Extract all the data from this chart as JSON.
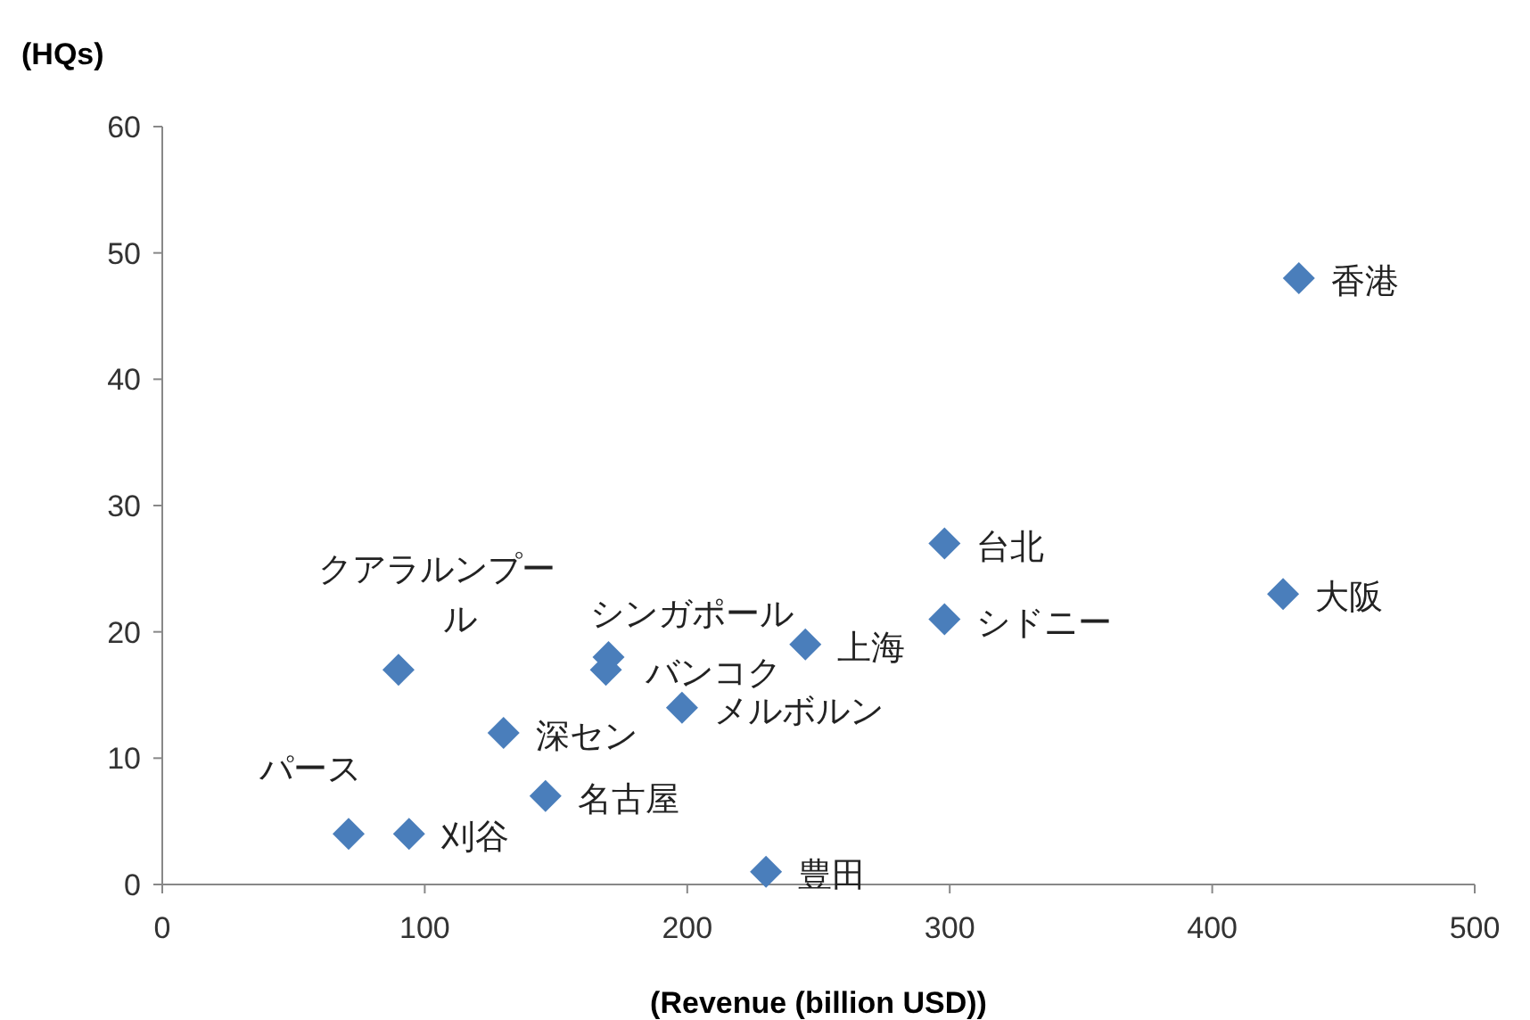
{
  "chart_data": {
    "type": "scatter",
    "xlabel": "(Revenue (billion USD))",
    "ylabel": "(HQs)",
    "xlim": [
      0,
      500
    ],
    "ylim": [
      0,
      60
    ],
    "xticks": [
      0,
      100,
      200,
      300,
      400,
      500
    ],
    "yticks": [
      0,
      10,
      20,
      30,
      40,
      50,
      60
    ],
    "grid": false,
    "marker": "diamond",
    "series": [
      {
        "color": "#4a7ebb",
        "x": [
          433,
          298,
          427,
          298,
          245,
          170,
          169,
          90,
          198,
          130,
          146,
          71,
          94,
          230
        ],
        "values": [
          48,
          27,
          23,
          21,
          19,
          18,
          17,
          17,
          14,
          12,
          7,
          4,
          4,
          1
        ]
      }
    ],
    "annotations": [
      {
        "text": "香港",
        "x": 433,
        "y": 48
      },
      {
        "text": "台北",
        "x": 298,
        "y": 27
      },
      {
        "text": "大阪",
        "x": 427,
        "y": 23
      },
      {
        "text": "シドニー",
        "x": 298,
        "y": 21
      },
      {
        "text": "上海",
        "x": 245,
        "y": 19
      },
      {
        "text": "シンガポール",
        "x": 170,
        "y": 18
      },
      {
        "text": "バンコク",
        "x": 169,
        "y": 17
      },
      {
        "text": "クアラルンプール",
        "x": 90,
        "y": 17
      },
      {
        "text": "メルボルン",
        "x": 198,
        "y": 14
      },
      {
        "text": "深セン",
        "x": 130,
        "y": 12
      },
      {
        "text": "名古屋",
        "x": 146,
        "y": 7
      },
      {
        "text": "パース",
        "x": 71,
        "y": 4
      },
      {
        "text": "刈谷",
        "x": 94,
        "y": 4
      },
      {
        "text": "豊田",
        "x": 230,
        "y": 1
      }
    ]
  }
}
